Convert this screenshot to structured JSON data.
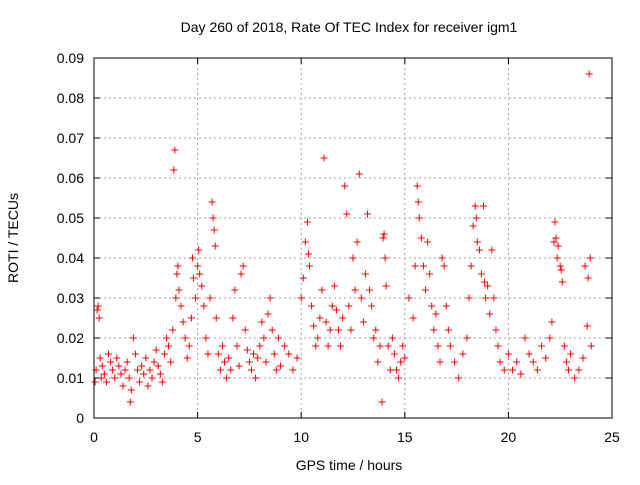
{
  "chart_data": {
    "type": "scatter",
    "title": "Day 260 of 2018, Rate Of TEC Index for receiver igm1",
    "xlabel": "GPS time / hours",
    "ylabel": "ROTI / TECUs",
    "xlim": [
      0,
      25
    ],
    "ylim": [
      0,
      0.09
    ],
    "x_ticks": [
      0,
      5,
      10,
      15,
      20,
      25
    ],
    "y_ticks": [
      0,
      0.01,
      0.02,
      0.03,
      0.04,
      0.05,
      0.06,
      0.07,
      0.08,
      0.09
    ],
    "x_tick_labels": [
      "0",
      "5",
      "10",
      "15",
      "20",
      "25"
    ],
    "y_tick_labels": [
      "0",
      "0.01",
      "0.02",
      "0.03",
      "0.04",
      "0.05",
      "0.06",
      "0.07",
      "0.08",
      "0.09"
    ],
    "grid": true,
    "marker": "+",
    "marker_color": "#ff0000",
    "series": [
      {
        "name": "ROTI",
        "points": [
          [
            0.05,
            0.009
          ],
          [
            0.1,
            0.012
          ],
          [
            0.15,
            0.027
          ],
          [
            0.2,
            0.028
          ],
          [
            0.25,
            0.025
          ],
          [
            0.3,
            0.015
          ],
          [
            0.35,
            0.01
          ],
          [
            0.4,
            0.013
          ],
          [
            0.5,
            0.011
          ],
          [
            0.6,
            0.009
          ],
          [
            0.7,
            0.016
          ],
          [
            0.8,
            0.014
          ],
          [
            0.9,
            0.012
          ],
          [
            1.0,
            0.01
          ],
          [
            1.1,
            0.015
          ],
          [
            1.2,
            0.013
          ],
          [
            1.3,
            0.011
          ],
          [
            1.4,
            0.008
          ],
          [
            1.5,
            0.012
          ],
          [
            1.6,
            0.014
          ],
          [
            1.7,
            0.01
          ],
          [
            1.75,
            0.004
          ],
          [
            1.8,
            0.007
          ],
          [
            1.9,
            0.02
          ],
          [
            2.0,
            0.016
          ],
          [
            2.1,
            0.012
          ],
          [
            2.2,
            0.009
          ],
          [
            2.3,
            0.013
          ],
          [
            2.4,
            0.011
          ],
          [
            2.5,
            0.015
          ],
          [
            2.6,
            0.008
          ],
          [
            2.7,
            0.012
          ],
          [
            2.8,
            0.01
          ],
          [
            2.9,
            0.014
          ],
          [
            3.0,
            0.017
          ],
          [
            3.1,
            0.013
          ],
          [
            3.2,
            0.011
          ],
          [
            3.3,
            0.009
          ],
          [
            3.4,
            0.016
          ],
          [
            3.5,
            0.02
          ],
          [
            3.6,
            0.018
          ],
          [
            3.7,
            0.014
          ],
          [
            3.8,
            0.022
          ],
          [
            3.85,
            0.062
          ],
          [
            3.9,
            0.067
          ],
          [
            3.95,
            0.03
          ],
          [
            4.0,
            0.036
          ],
          [
            4.05,
            0.038
          ],
          [
            4.1,
            0.032
          ],
          [
            4.2,
            0.028
          ],
          [
            4.3,
            0.024
          ],
          [
            4.4,
            0.02
          ],
          [
            4.5,
            0.015
          ],
          [
            4.6,
            0.018
          ],
          [
            4.7,
            0.025
          ],
          [
            4.75,
            0.04
          ],
          [
            4.8,
            0.035
          ],
          [
            4.9,
            0.03
          ],
          [
            5.0,
            0.038
          ],
          [
            5.05,
            0.042
          ],
          [
            5.1,
            0.036
          ],
          [
            5.2,
            0.033
          ],
          [
            5.3,
            0.028
          ],
          [
            5.4,
            0.02
          ],
          [
            5.5,
            0.016
          ],
          [
            5.6,
            0.03
          ],
          [
            5.7,
            0.054
          ],
          [
            5.75,
            0.05
          ],
          [
            5.8,
            0.047
          ],
          [
            5.85,
            0.043
          ],
          [
            5.9,
            0.025
          ],
          [
            6.0,
            0.016
          ],
          [
            6.1,
            0.012
          ],
          [
            6.2,
            0.018
          ],
          [
            6.3,
            0.014
          ],
          [
            6.4,
            0.01
          ],
          [
            6.5,
            0.015
          ],
          [
            6.6,
            0.012
          ],
          [
            6.7,
            0.025
          ],
          [
            6.8,
            0.032
          ],
          [
            6.9,
            0.018
          ],
          [
            7.0,
            0.013
          ],
          [
            7.1,
            0.036
          ],
          [
            7.2,
            0.038
          ],
          [
            7.3,
            0.022
          ],
          [
            7.4,
            0.017
          ],
          [
            7.5,
            0.014
          ],
          [
            7.6,
            0.012
          ],
          [
            7.7,
            0.016
          ],
          [
            7.8,
            0.01
          ],
          [
            7.9,
            0.015
          ],
          [
            8.0,
            0.018
          ],
          [
            8.1,
            0.024
          ],
          [
            8.2,
            0.02
          ],
          [
            8.3,
            0.014
          ],
          [
            8.4,
            0.026
          ],
          [
            8.5,
            0.03
          ],
          [
            8.6,
            0.022
          ],
          [
            8.7,
            0.016
          ],
          [
            8.8,
            0.012
          ],
          [
            8.9,
            0.02
          ],
          [
            9.0,
            0.013
          ],
          [
            9.2,
            0.018
          ],
          [
            9.4,
            0.016
          ],
          [
            9.6,
            0.012
          ],
          [
            9.8,
            0.015
          ],
          [
            10.0,
            0.03
          ],
          [
            10.1,
            0.035
          ],
          [
            10.2,
            0.044
          ],
          [
            10.3,
            0.049
          ],
          [
            10.35,
            0.041
          ],
          [
            10.4,
            0.038
          ],
          [
            10.5,
            0.028
          ],
          [
            10.6,
            0.023
          ],
          [
            10.7,
            0.018
          ],
          [
            10.8,
            0.02
          ],
          [
            10.9,
            0.025
          ],
          [
            11.0,
            0.032
          ],
          [
            11.1,
            0.065
          ],
          [
            11.2,
            0.024
          ],
          [
            11.3,
            0.018
          ],
          [
            11.4,
            0.022
          ],
          [
            11.5,
            0.028
          ],
          [
            11.6,
            0.033
          ],
          [
            11.7,
            0.027
          ],
          [
            11.8,
            0.022
          ],
          [
            11.9,
            0.018
          ],
          [
            12.0,
            0.025
          ],
          [
            12.1,
            0.058
          ],
          [
            12.2,
            0.051
          ],
          [
            12.3,
            0.028
          ],
          [
            12.4,
            0.022
          ],
          [
            12.5,
            0.04
          ],
          [
            12.6,
            0.032
          ],
          [
            12.7,
            0.044
          ],
          [
            12.8,
            0.061
          ],
          [
            12.9,
            0.03
          ],
          [
            13.0,
            0.024
          ],
          [
            13.1,
            0.036
          ],
          [
            13.2,
            0.051
          ],
          [
            13.3,
            0.032
          ],
          [
            13.4,
            0.028
          ],
          [
            13.5,
            0.02
          ],
          [
            13.6,
            0.022
          ],
          [
            13.7,
            0.014
          ],
          [
            13.8,
            0.018
          ],
          [
            13.9,
            0.004
          ],
          [
            13.95,
            0.045
          ],
          [
            14.0,
            0.046
          ],
          [
            14.05,
            0.04
          ],
          [
            14.1,
            0.033
          ],
          [
            14.2,
            0.018
          ],
          [
            14.3,
            0.012
          ],
          [
            14.4,
            0.02
          ],
          [
            14.5,
            0.016
          ],
          [
            14.6,
            0.012
          ],
          [
            14.7,
            0.01
          ],
          [
            14.8,
            0.014
          ],
          [
            14.9,
            0.018
          ],
          [
            15.0,
            0.015
          ],
          [
            15.2,
            0.03
          ],
          [
            15.4,
            0.025
          ],
          [
            15.5,
            0.038
          ],
          [
            15.6,
            0.058
          ],
          [
            15.65,
            0.054
          ],
          [
            15.7,
            0.05
          ],
          [
            15.8,
            0.045
          ],
          [
            15.9,
            0.038
          ],
          [
            16.0,
            0.032
          ],
          [
            16.1,
            0.044
          ],
          [
            16.2,
            0.036
          ],
          [
            16.3,
            0.028
          ],
          [
            16.4,
            0.022
          ],
          [
            16.5,
            0.026
          ],
          [
            16.6,
            0.018
          ],
          [
            16.7,
            0.014
          ],
          [
            16.8,
            0.04
          ],
          [
            16.9,
            0.038
          ],
          [
            17.0,
            0.028
          ],
          [
            17.1,
            0.022
          ],
          [
            17.2,
            0.018
          ],
          [
            17.4,
            0.014
          ],
          [
            17.6,
            0.01
          ],
          [
            17.8,
            0.016
          ],
          [
            18.0,
            0.02
          ],
          [
            18.1,
            0.03
          ],
          [
            18.2,
            0.038
          ],
          [
            18.3,
            0.048
          ],
          [
            18.4,
            0.053
          ],
          [
            18.45,
            0.05
          ],
          [
            18.5,
            0.044
          ],
          [
            18.6,
            0.042
          ],
          [
            18.7,
            0.036
          ],
          [
            18.8,
            0.053
          ],
          [
            18.85,
            0.034
          ],
          [
            18.9,
            0.03
          ],
          [
            19.0,
            0.033
          ],
          [
            19.1,
            0.026
          ],
          [
            19.2,
            0.042
          ],
          [
            19.3,
            0.03
          ],
          [
            19.4,
            0.022
          ],
          [
            19.5,
            0.018
          ],
          [
            19.6,
            0.014
          ],
          [
            19.8,
            0.012
          ],
          [
            20.0,
            0.016
          ],
          [
            20.2,
            0.012
          ],
          [
            20.4,
            0.014
          ],
          [
            20.6,
            0.011
          ],
          [
            20.8,
            0.02
          ],
          [
            21.0,
            0.016
          ],
          [
            21.2,
            0.014
          ],
          [
            21.4,
            0.012
          ],
          [
            21.6,
            0.018
          ],
          [
            21.8,
            0.015
          ],
          [
            22.0,
            0.02
          ],
          [
            22.1,
            0.024
          ],
          [
            22.2,
            0.044
          ],
          [
            22.25,
            0.049
          ],
          [
            22.3,
            0.045
          ],
          [
            22.35,
            0.04
          ],
          [
            22.4,
            0.043
          ],
          [
            22.5,
            0.038
          ],
          [
            22.55,
            0.037
          ],
          [
            22.6,
            0.034
          ],
          [
            22.7,
            0.018
          ],
          [
            22.8,
            0.014
          ],
          [
            22.9,
            0.012
          ],
          [
            23.0,
            0.016
          ],
          [
            23.2,
            0.01
          ],
          [
            23.4,
            0.012
          ],
          [
            23.6,
            0.015
          ],
          [
            23.7,
            0.038
          ],
          [
            23.8,
            0.023
          ],
          [
            23.85,
            0.035
          ],
          [
            23.9,
            0.086
          ],
          [
            23.95,
            0.04
          ],
          [
            24.0,
            0.018
          ]
        ]
      }
    ]
  }
}
